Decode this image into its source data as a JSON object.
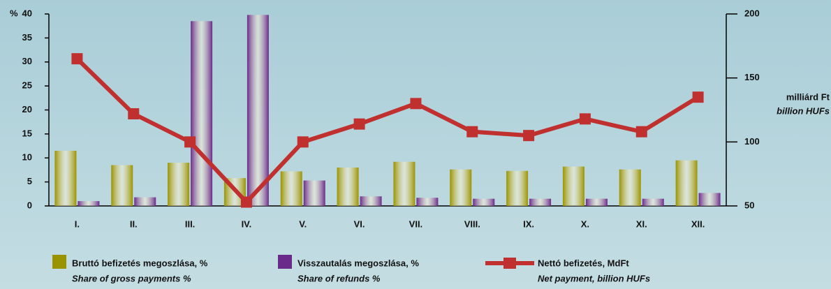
{
  "chart_data": {
    "type": "bar",
    "categories": [
      "I.",
      "II.",
      "III.",
      "IV.",
      "V.",
      "VI.",
      "VII.",
      "VIII.",
      "IX.",
      "X.",
      "XI.",
      "XII."
    ],
    "y_label": "%",
    "y2_label": "milliárd Ft",
    "y2_label_en": "billion HUFs",
    "ylim": [
      0,
      40
    ],
    "yticks": [
      0,
      5,
      10,
      15,
      20,
      25,
      30,
      35,
      40
    ],
    "y2lim": [
      50,
      200
    ],
    "y2ticks": [
      50,
      100,
      150,
      200
    ],
    "series": [
      {
        "name": "Bruttó befizetés megoszlása, %",
        "name_en": "Share of gross payments %",
        "type": "bar",
        "color": "#9a9300",
        "values": [
          11.5,
          8.5,
          9,
          5.8,
          7.2,
          8,
          9.2,
          7.6,
          7.3,
          8.2,
          7.6,
          9.5
        ]
      },
      {
        "name": "Visszautalás megoszlása, %",
        "name_en": "Share of refunds %",
        "type": "bar",
        "color": "#6a2a8a",
        "values": [
          1,
          1.8,
          38.5,
          39.8,
          5.3,
          2,
          1.7,
          1.5,
          1.5,
          1.5,
          1.5,
          2.7
        ]
      },
      {
        "name": "Nettó befizetés, MdFt",
        "name_en": "Net payment, billion HUFs",
        "type": "line",
        "axis": "y2",
        "color": "#c0302e",
        "values": [
          165,
          122,
          100,
          53,
          100,
          114,
          130,
          108,
          105,
          118,
          108,
          135
        ]
      }
    ]
  }
}
